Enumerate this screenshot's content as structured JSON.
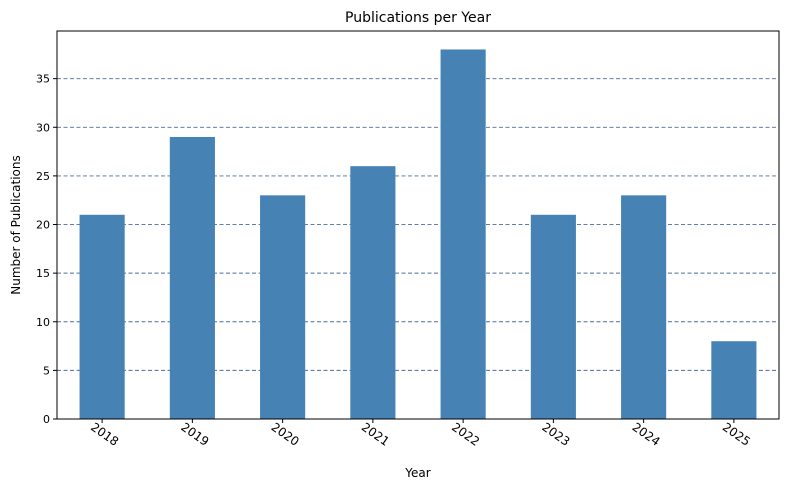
{
  "chart_data": {
    "type": "bar",
    "title": "Publications per Year",
    "xlabel": "Year",
    "ylabel": "Number of Publications",
    "categories": [
      "2018",
      "2019",
      "2020",
      "2021",
      "2022",
      "2023",
      "2024",
      "2025"
    ],
    "values": [
      21,
      29,
      23,
      26,
      38,
      21,
      23,
      8
    ],
    "ylim": [
      0,
      39.9
    ],
    "yticks": [
      0,
      5,
      10,
      15,
      20,
      25,
      30,
      35
    ],
    "grid": {
      "axis": "y",
      "style": "dashed",
      "color": "#4a6f96"
    },
    "bar_color": "#4682b4",
    "tick_label_rotation": -35,
    "legend": "none"
  }
}
